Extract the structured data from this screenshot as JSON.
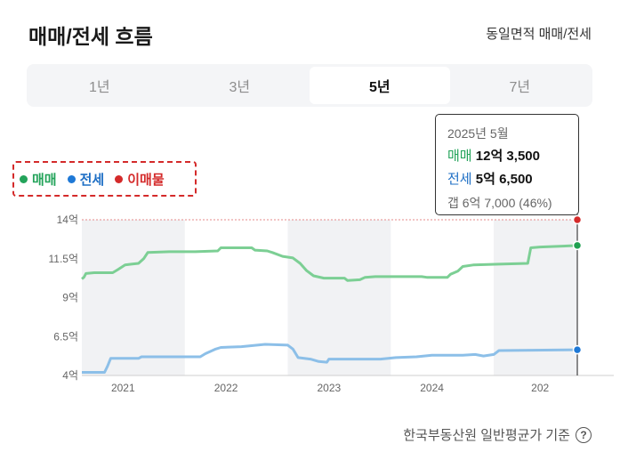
{
  "header": {
    "title": "매매/전세 흐름",
    "subtitle": "동일면적 매매/전세"
  },
  "tabs": [
    {
      "label": "1년",
      "active": false
    },
    {
      "label": "3년",
      "active": false
    },
    {
      "label": "5년",
      "active": true
    },
    {
      "label": "7년",
      "active": false
    }
  ],
  "tooltip": {
    "date": "2025년 5월",
    "sale_label": "매매",
    "sale_value": "12억 3,500",
    "jeonse_label": "전세",
    "jeonse_value": "5억 6,500",
    "gap": "갭 6억 7,000 (46%)"
  },
  "legend": {
    "sale": "매매",
    "jeonse": "전세",
    "listing": "이매물"
  },
  "colors": {
    "sale": "#7ccf94",
    "jeonse": "#8cbfe8",
    "sale_dot": "#1fa050",
    "jeonse_dot": "#1e78d6",
    "listing_dot": "#d42a2a",
    "band": "#f1f2f4"
  },
  "source": {
    "text": "한국부동산원 일반평균가 기준",
    "help_icon": "question-icon"
  },
  "chart_data": {
    "type": "line",
    "y_ticks": [
      "4억",
      "6.5억",
      "9억",
      "11.5억",
      "14억"
    ],
    "x_ticks": [
      "2021",
      "2022",
      "2023",
      "2024",
      "202"
    ],
    "ylim": [
      4,
      14
    ],
    "xlim": [
      2020.6,
      2025.42
    ],
    "shaded_years": [
      [
        2020.6,
        2021.6
      ],
      [
        2022.6,
        2023.6
      ],
      [
        2024.6,
        2025.42
      ]
    ],
    "reference_line": {
      "label": "이매물",
      "value": 14.0
    },
    "series": [
      {
        "name": "매매",
        "color": "#7ccf94",
        "points": [
          [
            2020.6,
            10.2
          ],
          [
            2020.62,
            10.3
          ],
          [
            2020.64,
            10.55
          ],
          [
            2020.72,
            10.6
          ],
          [
            2020.9,
            10.6
          ],
          [
            2020.95,
            10.8
          ],
          [
            2021.02,
            11.1
          ],
          [
            2021.08,
            11.15
          ],
          [
            2021.15,
            11.2
          ],
          [
            2021.2,
            11.5
          ],
          [
            2021.24,
            11.9
          ],
          [
            2021.45,
            11.95
          ],
          [
            2021.7,
            11.95
          ],
          [
            2021.92,
            12.0
          ],
          [
            2021.95,
            12.2
          ],
          [
            2022.25,
            12.2
          ],
          [
            2022.28,
            12.05
          ],
          [
            2022.4,
            12.0
          ],
          [
            2022.45,
            11.9
          ],
          [
            2022.55,
            11.65
          ],
          [
            2022.65,
            11.55
          ],
          [
            2022.72,
            11.2
          ],
          [
            2022.78,
            10.75
          ],
          [
            2022.85,
            10.4
          ],
          [
            2022.95,
            10.25
          ],
          [
            2023.15,
            10.25
          ],
          [
            2023.18,
            10.1
          ],
          [
            2023.3,
            10.15
          ],
          [
            2023.35,
            10.3
          ],
          [
            2023.45,
            10.35
          ],
          [
            2023.9,
            10.35
          ],
          [
            2023.95,
            10.3
          ],
          [
            2024.15,
            10.3
          ],
          [
            2024.18,
            10.5
          ],
          [
            2024.25,
            10.7
          ],
          [
            2024.3,
            11.0
          ],
          [
            2024.4,
            11.1
          ],
          [
            2024.65,
            11.15
          ],
          [
            2024.93,
            11.2
          ],
          [
            2024.96,
            12.2
          ],
          [
            2025.05,
            12.25
          ],
          [
            2025.42,
            12.35
          ]
        ]
      },
      {
        "name": "전세",
        "color": "#8cbfe8",
        "points": [
          [
            2020.6,
            4.2
          ],
          [
            2020.82,
            4.2
          ],
          [
            2020.85,
            4.6
          ],
          [
            2020.88,
            5.1
          ],
          [
            2021.15,
            5.1
          ],
          [
            2021.18,
            5.2
          ],
          [
            2021.75,
            5.2
          ],
          [
            2021.8,
            5.4
          ],
          [
            2021.9,
            5.7
          ],
          [
            2021.95,
            5.8
          ],
          [
            2022.15,
            5.85
          ],
          [
            2022.38,
            6.0
          ],
          [
            2022.6,
            5.95
          ],
          [
            2022.65,
            5.7
          ],
          [
            2022.7,
            5.15
          ],
          [
            2022.82,
            5.05
          ],
          [
            2022.9,
            4.9
          ],
          [
            2022.98,
            4.85
          ],
          [
            2023.0,
            5.05
          ],
          [
            2023.5,
            5.05
          ],
          [
            2023.65,
            5.15
          ],
          [
            2023.85,
            5.2
          ],
          [
            2024.0,
            5.3
          ],
          [
            2024.3,
            5.3
          ],
          [
            2024.42,
            5.35
          ],
          [
            2024.5,
            5.25
          ],
          [
            2024.6,
            5.35
          ],
          [
            2024.65,
            5.6
          ],
          [
            2025.42,
            5.65
          ]
        ]
      }
    ],
    "endpoints": [
      {
        "series": "이매물",
        "y": 14.0
      },
      {
        "series": "매매",
        "y": 12.35
      },
      {
        "series": "전세",
        "y": 5.65
      }
    ]
  }
}
